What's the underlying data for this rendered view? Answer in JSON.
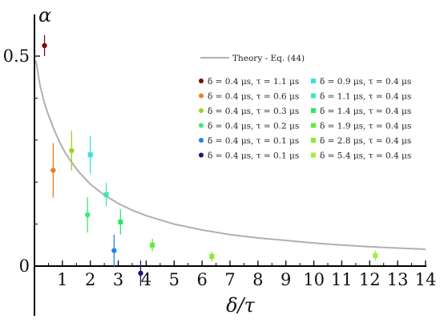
{
  "chart_data": {
    "type": "scatter",
    "xlabel": "δ/τ",
    "ylabel": "α",
    "xlim": [
      0,
      14
    ],
    "ylim": [
      -0.12,
      0.6
    ],
    "x_ticks": [
      "1",
      "2",
      "3",
      "4",
      "5",
      "6",
      "7",
      "8",
      "9",
      "10",
      "11",
      "12",
      "13",
      "14"
    ],
    "y_ticks": [
      "0",
      "0.5"
    ],
    "grid": false,
    "legend_position": "top-right",
    "theory": {
      "name": "Theory - Eq. (44)",
      "color": "#b0b0b0",
      "x": [
        0.05,
        0.2,
        0.35,
        0.5,
        0.7,
        0.9,
        1.1,
        1.3,
        1.6,
        2.0,
        2.5,
        3.0,
        3.5,
        4.0,
        5.0,
        6.0,
        7.0,
        8.0,
        9.0,
        10.0,
        11.0,
        12.0,
        13.0,
        14.0
      ],
      "y": [
        0.49,
        0.43,
        0.39,
        0.36,
        0.325,
        0.295,
        0.27,
        0.25,
        0.223,
        0.195,
        0.169,
        0.149,
        0.133,
        0.12,
        0.1,
        0.086,
        0.075,
        0.067,
        0.061,
        0.055,
        0.05,
        0.046,
        0.043,
        0.04
      ]
    },
    "series": [
      {
        "name": "δ = 0.4 μs,  τ = 1.1 μs",
        "marker": "circle",
        "color": "#7a0d0d",
        "x": 0.36,
        "y": 0.525,
        "err": 0.025
      },
      {
        "name": "δ = 0.4 μs,  τ = 0.6 μs",
        "marker": "circle",
        "color": "#f07d1f",
        "x": 0.67,
        "y": 0.228,
        "err": 0.065
      },
      {
        "name": "δ = 0.4 μs,  τ = 0.3 μs",
        "marker": "circle",
        "color": "#9bd41f",
        "x": 1.33,
        "y": 0.275,
        "err": 0.047
      },
      {
        "name": "δ = 0.4 μs,  τ = 0.2 μs",
        "marker": "circle",
        "color": "#3ee876",
        "x": 1.9,
        "y": 0.122,
        "err": 0.042
      },
      {
        "name": "δ = 0.4 μs,  τ = 0.1 μs",
        "marker": "circle",
        "color": "#2484e4",
        "x": 2.85,
        "y": 0.037,
        "err": 0.038
      },
      {
        "name": "δ = 0.4 μs,  τ = 0.1 μs",
        "marker": "circle",
        "color": "#17177a",
        "x": 3.8,
        "y": -0.017,
        "err": 0.03
      },
      {
        "name": "δ = 0.9 μs,  τ = 0.4 μs",
        "marker": "square",
        "color": "#35e1dd",
        "x": 2.0,
        "y": 0.265,
        "err": 0.045
      },
      {
        "name": "δ = 1.1 μs,  τ = 0.4 μs",
        "marker": "square",
        "color": "#40e3b8",
        "x": 2.57,
        "y": 0.17,
        "err": 0.028
      },
      {
        "name": "δ = 1.4 μs,  τ = 0.4 μs",
        "marker": "square",
        "color": "#2ee566",
        "x": 3.08,
        "y": 0.105,
        "err": 0.03
      },
      {
        "name": "δ = 1.9 μs,  τ = 0.4 μs",
        "marker": "square",
        "color": "#64e83c",
        "x": 4.22,
        "y": 0.05,
        "err": 0.015
      },
      {
        "name": "δ = 2.8 μs,  τ = 0.4 μs",
        "marker": "square",
        "color": "#8be834",
        "x": 6.35,
        "y": 0.023,
        "err": 0.012
      },
      {
        "name": "δ = 5.4 μs,  τ = 0.4 μs",
        "marker": "square",
        "color": "#a5ec44",
        "x": 12.2,
        "y": 0.025,
        "err": 0.012
      }
    ]
  }
}
